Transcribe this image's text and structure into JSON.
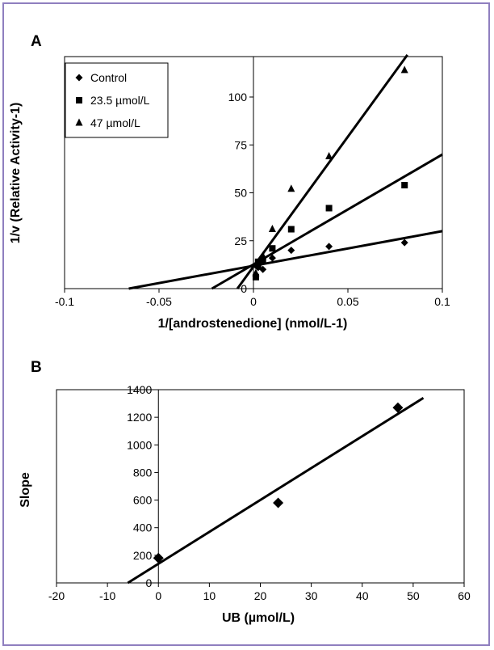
{
  "chart_data": [
    {
      "type": "scatter",
      "panel_label": "A",
      "xlabel": "1/[androstenedione] (nmol/L-1)",
      "ylabel": "1/v (Relative Activity-1)",
      "xlim": [
        -0.1,
        0.1
      ],
      "ylim": [
        0,
        125
      ],
      "x_ticks": [
        -0.1,
        -0.05,
        0,
        0.05,
        0.1
      ],
      "x_tick_labels": [
        "-0.1",
        "-0.05",
        "0",
        "0.05",
        "0.1"
      ],
      "y_ticks": [
        0,
        25,
        50,
        75,
        100
      ],
      "y_tick_labels": [
        "0",
        "25",
        "50",
        "75",
        "100"
      ],
      "legend_position": "top-left",
      "series": [
        {
          "name": "Control",
          "marker": "diamond",
          "points": [
            [
              0.00125,
              12
            ],
            [
              0.0025,
              11
            ],
            [
              0.005,
              10
            ],
            [
              0.01,
              16
            ],
            [
              0.02,
              20
            ],
            [
              0.04,
              22
            ],
            [
              0.08,
              24
            ]
          ],
          "fit_line": [
            [
              -0.066,
              0
            ],
            [
              0.1,
              30
            ]
          ]
        },
        {
          "name": "23.5 µmol/L",
          "marker": "square",
          "points": [
            [
              0.00125,
              6
            ],
            [
              0.0025,
              14
            ],
            [
              0.005,
              15
            ],
            [
              0.01,
              21
            ],
            [
              0.02,
              31
            ],
            [
              0.04,
              42
            ],
            [
              0.08,
              54
            ]
          ],
          "fit_line": [
            [
              -0.022,
              0
            ],
            [
              0.1,
              70
            ]
          ]
        },
        {
          "name": "47 µmol/L",
          "marker": "triangle",
          "points": [
            [
              0.00125,
              8
            ],
            [
              0.0025,
              13
            ],
            [
              0.005,
              17
            ],
            [
              0.01,
              31
            ],
            [
              0.02,
              52
            ],
            [
              0.04,
              69
            ],
            [
              0.08,
              114
            ]
          ],
          "fit_line": [
            [
              -0.0085,
              0
            ],
            [
              0.0815,
              122
            ]
          ]
        }
      ]
    },
    {
      "type": "scatter",
      "panel_label": "B",
      "xlabel": "UB (µmol/L)",
      "ylabel": "Slope",
      "xlim": [
        -20,
        60
      ],
      "ylim": [
        0,
        1400
      ],
      "x_ticks": [
        -20,
        -10,
        0,
        10,
        20,
        30,
        40,
        50,
        60
      ],
      "x_tick_labels": [
        "-20",
        "-10",
        "0",
        "10",
        "20",
        "30",
        "40",
        "50",
        "60"
      ],
      "y_ticks": [
        0,
        200,
        400,
        600,
        800,
        1000,
        1200,
        1400
      ],
      "y_tick_labels": [
        "0",
        "200",
        "400",
        "600",
        "800",
        "1000",
        "1200",
        "1400"
      ],
      "series": [
        {
          "marker": "diamond",
          "points": [
            [
              0,
              180
            ],
            [
              23.5,
              580
            ],
            [
              47,
              1270
            ]
          ],
          "fit_line": [
            [
              -6,
              0
            ],
            [
              52,
              1340
            ]
          ]
        }
      ]
    }
  ]
}
